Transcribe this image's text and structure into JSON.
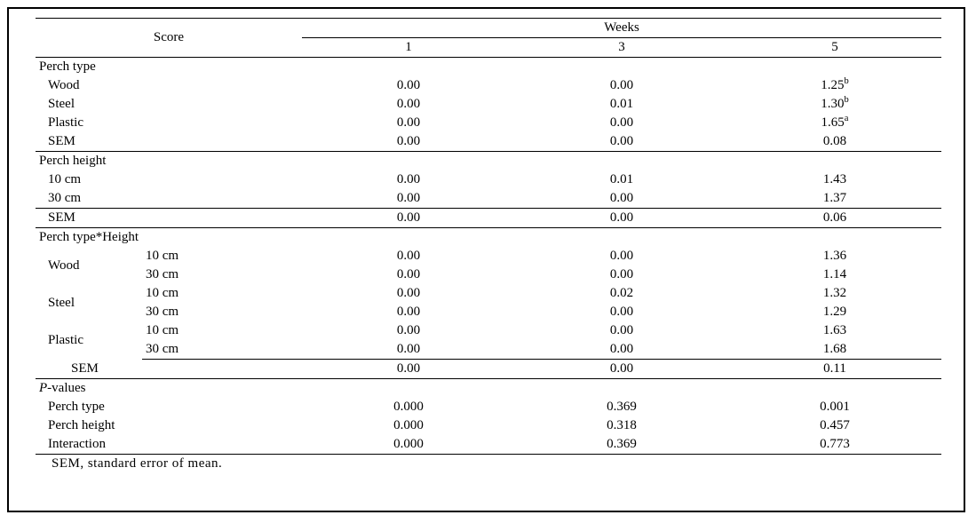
{
  "table": {
    "header": {
      "score": "Score",
      "weeks": "Weeks",
      "week_cols": [
        "1",
        "3",
        "5"
      ]
    },
    "sections": {
      "perch_type": {
        "title": "Perch type",
        "rows": [
          {
            "label": "Wood",
            "v": [
              "0.00",
              "0.00",
              "1.25"
            ],
            "sup": [
              null,
              null,
              "b"
            ]
          },
          {
            "label": "Steel",
            "v": [
              "0.00",
              "0.01",
              "1.30"
            ],
            "sup": [
              null,
              null,
              "b"
            ]
          },
          {
            "label": "Plastic",
            "v": [
              "0.00",
              "0.00",
              "1.65"
            ],
            "sup": [
              null,
              null,
              "a"
            ]
          },
          {
            "label": "SEM",
            "v": [
              "0.00",
              "0.00",
              "0.08"
            ],
            "sup": [
              null,
              null,
              null
            ]
          }
        ]
      },
      "perch_height": {
        "title": "Perch height",
        "rows": [
          {
            "label": "10 cm",
            "v": [
              "0.00",
              "0.01",
              "1.43"
            ]
          },
          {
            "label": "30 cm",
            "v": [
              "0.00",
              "0.00",
              "1.37"
            ]
          }
        ],
        "sem": {
          "label": "SEM",
          "v": [
            "0.00",
            "0.00",
            "0.06"
          ]
        }
      },
      "interaction": {
        "title": "Perch type*Height",
        "groups": [
          {
            "label": "Wood",
            "sub": [
              {
                "h": "10 cm",
                "v": [
                  "0.00",
                  "0.00",
                  "1.36"
                ]
              },
              {
                "h": "30 cm",
                "v": [
                  "0.00",
                  "0.00",
                  "1.14"
                ]
              }
            ]
          },
          {
            "label": "Steel",
            "sub": [
              {
                "h": "10 cm",
                "v": [
                  "0.00",
                  "0.02",
                  "1.32"
                ]
              },
              {
                "h": "30 cm",
                "v": [
                  "0.00",
                  "0.00",
                  "1.29"
                ]
              }
            ]
          },
          {
            "label": "Plastic",
            "sub": [
              {
                "h": "10 cm",
                "v": [
                  "0.00",
                  "0.00",
                  "1.63"
                ]
              },
              {
                "h": "30 cm",
                "v": [
                  "0.00",
                  "0.00",
                  "1.68"
                ]
              }
            ]
          }
        ],
        "sem": {
          "label": "SEM",
          "v": [
            "0.00",
            "0.00",
            "0.11"
          ]
        }
      },
      "pvalues": {
        "title": "-values",
        "prefix": "P",
        "rows": [
          {
            "label": "Perch type",
            "v": [
              "0.000",
              "0.369",
              "0.001"
            ]
          },
          {
            "label": "Perch height",
            "v": [
              "0.000",
              "0.318",
              "0.457"
            ]
          },
          {
            "label": "Interaction",
            "v": [
              "0.000",
              "0.369",
              "0.773"
            ]
          }
        ]
      }
    },
    "footnote": "SEM, standard error of mean."
  },
  "col_widths": {
    "c1": "120px",
    "c2": "180px",
    "c3": "240px",
    "c4": "240px",
    "c5": "240px"
  }
}
